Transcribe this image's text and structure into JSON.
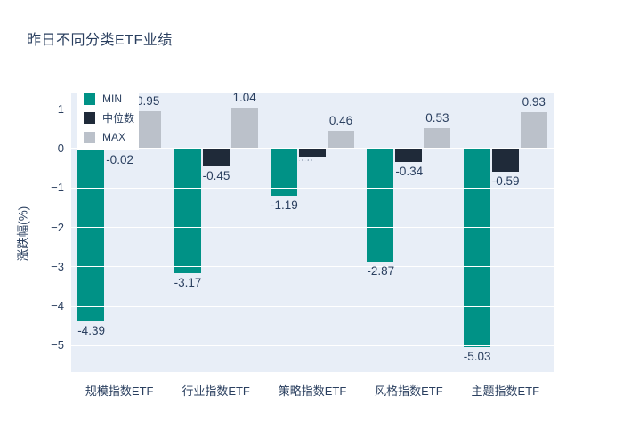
{
  "title": "昨日不同分类ETF业绩",
  "chart_data": {
    "type": "bar",
    "categories": [
      "规模指数ETF",
      "行业指数ETF",
      "策略指数ETF",
      "风格指数ETF",
      "主题指数ETF"
    ],
    "series": [
      {
        "key": "min",
        "name": "MIN",
        "color": "#009286",
        "values": [
          -4.39,
          -3.17,
          -1.19,
          -2.87,
          -5.03
        ],
        "labels": [
          "-4.39",
          "-3.17",
          "-1.19",
          "-2.87",
          "-5.03"
        ]
      },
      {
        "key": "median",
        "name": "中位数",
        "color": "#1f2a39",
        "values": [
          -0.02,
          -0.45,
          -0.2,
          -0.34,
          -0.59
        ],
        "labels": [
          "-0.02",
          "-0.45",
          "-0.20",
          "-0.34",
          "-0.59"
        ],
        "tiny_label_indices": [
          2
        ]
      },
      {
        "key": "max",
        "name": "MAX",
        "color": "#bbc1ca",
        "values": [
          0.95,
          1.04,
          0.46,
          0.53,
          0.93
        ],
        "labels": [
          "0.95",
          "1.04",
          "0.46",
          "0.53",
          "0.93"
        ]
      }
    ],
    "title": "昨日不同分类ETF业绩",
    "xlabel": "",
    "ylabel": "涨跌幅(%)",
    "yticks": [
      1,
      0,
      -1,
      -2,
      -3,
      -4,
      -5
    ],
    "ytick_labels": [
      "1",
      "0",
      "−1",
      "−2",
      "−3",
      "−4",
      "−5"
    ],
    "ylim": [
      -5.67,
      1.4
    ],
    "grid": true,
    "legend_position": "top-left",
    "plot_bg_color": "#e8eef7",
    "grid_color": "#ffffff",
    "font_color": "#2a3f5f"
  },
  "legend": {
    "items": [
      {
        "label": "MIN",
        "color": "#009286"
      },
      {
        "label": "中位数",
        "color": "#1f2a39"
      },
      {
        "label": "MAX",
        "color": "#bbc1ca"
      }
    ]
  }
}
